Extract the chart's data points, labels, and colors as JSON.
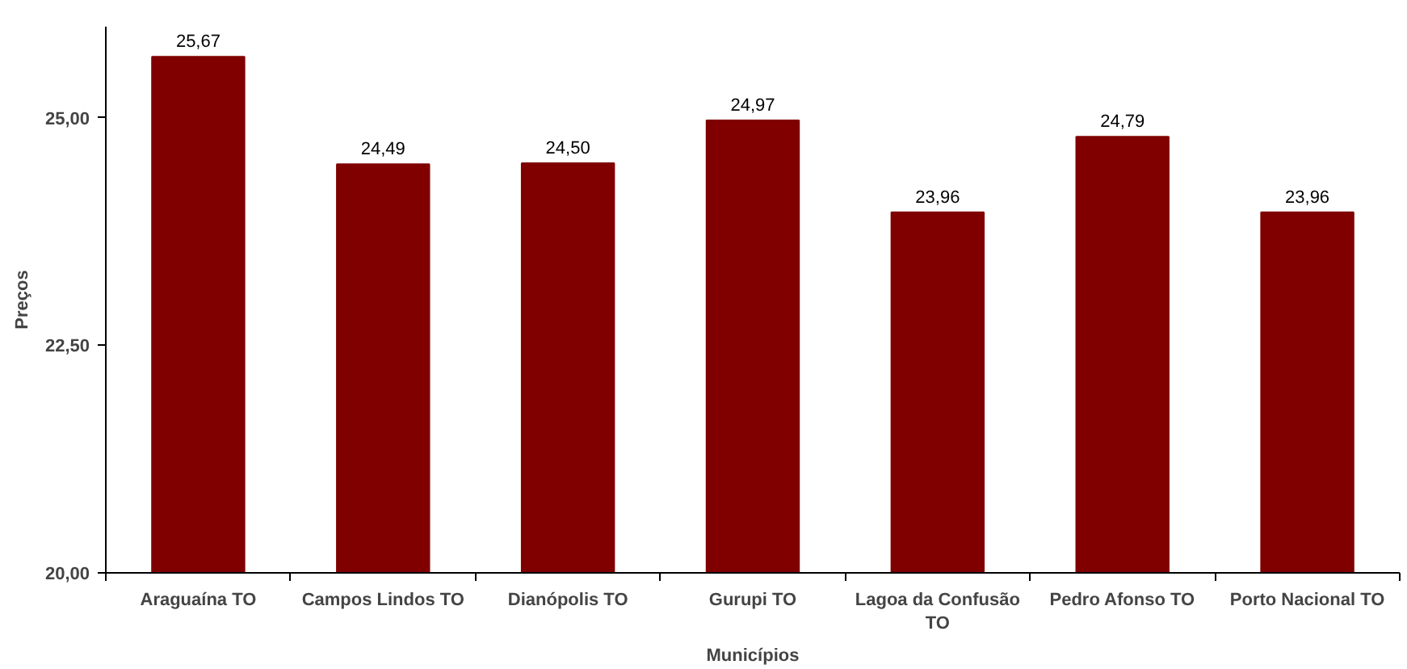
{
  "chart_data": {
    "type": "bar",
    "xlabel": "Municípios",
    "ylabel": "Preços",
    "categories": [
      "Araguaína TO",
      "Campos Lindos TO",
      "Dianópolis TO",
      "Gurupi TO",
      "Lagoa da Confusão TO",
      "Pedro Afonso TO",
      "Porto Nacional TO"
    ],
    "values": [
      25.67,
      24.49,
      24.5,
      24.97,
      23.96,
      24.79,
      23.96
    ],
    "value_labels": [
      "25,67",
      "24,49",
      "24,50",
      "24,97",
      "23,96",
      "24,79",
      "23,96"
    ],
    "color": "#800000",
    "ylim": [
      20,
      26
    ],
    "yticks": [
      {
        "value": 20,
        "label": "20,00"
      },
      {
        "value": 22.5,
        "label": "22,50"
      },
      {
        "value": 25,
        "label": "25,00"
      }
    ],
    "grid": false
  }
}
